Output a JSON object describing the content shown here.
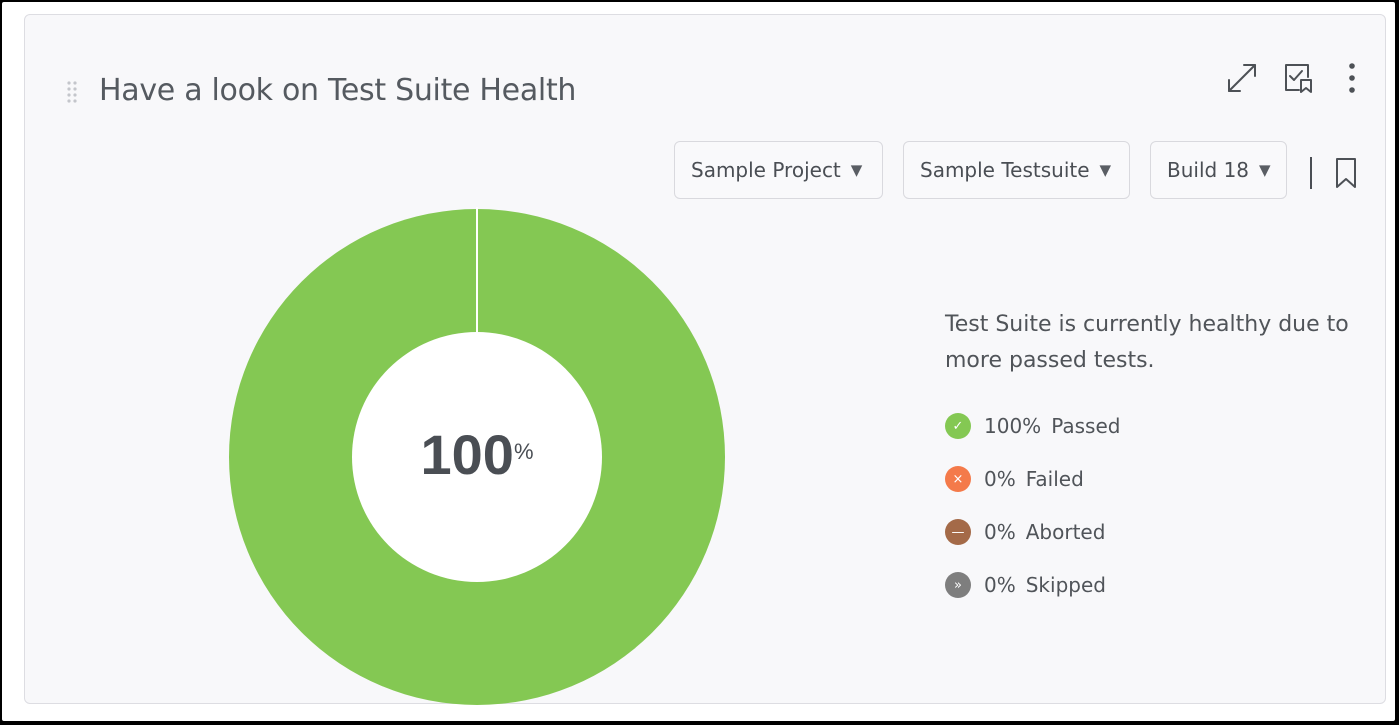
{
  "widget": {
    "title": "Have a look on Test Suite Health",
    "icons": [
      "drag-handle-icon",
      "expand-icon",
      "checklist-bookmark-icon",
      "more-vertical-icon",
      "bookmark-icon"
    ]
  },
  "filters": {
    "project": "Sample Project",
    "testsuite": "Sample Testsuite",
    "build": "Build 18",
    "caret": "▼"
  },
  "health": {
    "center_value": "100",
    "center_unit": "%",
    "summary": "Test Suite is currently healthy due to more passed tests.",
    "legend": [
      {
        "pct": "100%",
        "label": "Passed",
        "color": "#84c853",
        "glyph": "✓"
      },
      {
        "pct": "0%",
        "label": "Failed",
        "color": "#f47a4a",
        "glyph": "×"
      },
      {
        "pct": "0%",
        "label": "Aborted",
        "color": "#a46a48",
        "glyph": "—"
      },
      {
        "pct": "0%",
        "label": "Skipped",
        "color": "#7e7e7e",
        "glyph": "»"
      }
    ]
  },
  "chart_data": {
    "type": "pie",
    "categories": [
      "Passed",
      "Failed",
      "Aborted",
      "Skipped"
    ],
    "values": [
      100,
      0,
      0,
      0
    ],
    "colors": [
      "#84c853",
      "#f47a4a",
      "#a46a48",
      "#7e7e7e"
    ],
    "donut": true,
    "center_label": "100%"
  }
}
